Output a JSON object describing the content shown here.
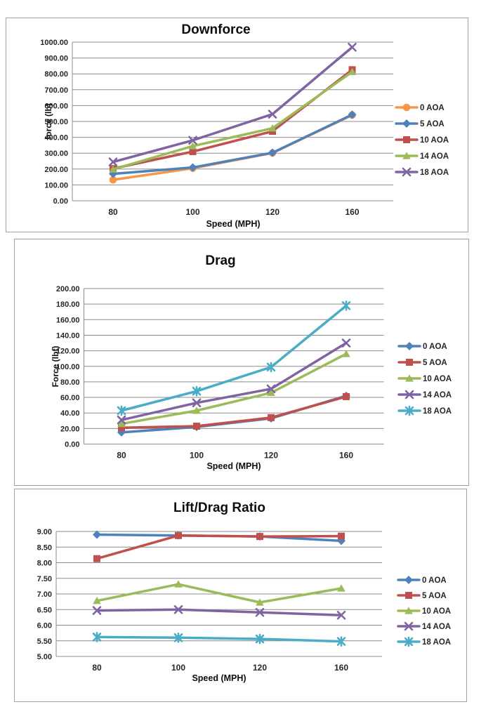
{
  "page": {
    "background": "#ffffff",
    "border_color": "#a3a3a3",
    "grid_color": "#8c8c8c",
    "tick_color": "#262626"
  },
  "chart_data": [
    {
      "type": "line",
      "title": "Downforce",
      "xlabel": "Speed (MPH)",
      "ylabel": "force (lb)",
      "categories": [
        "80",
        "100",
        "120",
        "160"
      ],
      "ylim": [
        0,
        1000
      ],
      "ytick_step": 100,
      "ytick_decimals": 2,
      "grid": true,
      "legend_position": "right",
      "series": [
        {
          "name": "0 AOA",
          "color": "#F79646",
          "marker": "circle",
          "values": [
            132,
            205,
            301,
            540
          ]
        },
        {
          "name": "5 AOA",
          "color": "#4F81BD",
          "marker": "diamond",
          "values": [
            170,
            210,
            303,
            543
          ]
        },
        {
          "name": "10 AOA",
          "color": "#C0504D",
          "marker": "square",
          "values": [
            203,
            310,
            438,
            826
          ]
        },
        {
          "name": "14 AOA",
          "color": "#9BBB59",
          "marker": "triangle",
          "values": [
            198,
            345,
            457,
            813
          ]
        },
        {
          "name": "18 AOA",
          "color": "#8064A2",
          "marker": "x",
          "values": [
            245,
            381,
            546,
            968
          ]
        }
      ]
    },
    {
      "type": "line",
      "title": "Drag",
      "xlabel": "Speed (MPH)",
      "ylabel": "Force (lbf)",
      "categories": [
        "80",
        "100",
        "120",
        "160"
      ],
      "ylim": [
        0,
        200
      ],
      "ytick_step": 20,
      "ytick_decimals": 2,
      "grid": true,
      "legend_position": "right",
      "series": [
        {
          "name": "0 AOA",
          "color": "#4F81BD",
          "marker": "diamond",
          "values": [
            15,
            22,
            33,
            62
          ]
        },
        {
          "name": "5 AOA",
          "color": "#C0504D",
          "marker": "square",
          "values": [
            21,
            23,
            34,
            61
          ]
        },
        {
          "name": "10 AOA",
          "color": "#9BBB59",
          "marker": "triangle",
          "values": [
            26,
            43,
            66,
            116
          ]
        },
        {
          "name": "14 AOA",
          "color": "#8064A2",
          "marker": "x",
          "values": [
            31,
            53,
            71,
            130
          ]
        },
        {
          "name": "18 AOA",
          "color": "#4BACC6",
          "marker": "asterisk",
          "values": [
            43,
            68,
            99,
            178
          ]
        }
      ]
    },
    {
      "type": "line",
      "title": "Lift/Drag Ratio",
      "xlabel": "Speed (MPH)",
      "ylabel": "",
      "categories": [
        "80",
        "100",
        "120",
        "160"
      ],
      "ylim": [
        5,
        9
      ],
      "ytick_step": 0.5,
      "ytick_decimals": 2,
      "grid": true,
      "legend_position": "right",
      "series": [
        {
          "name": "0 AOA",
          "color": "#4F81BD",
          "marker": "diamond",
          "values": [
            8.9,
            8.87,
            8.84,
            8.7
          ]
        },
        {
          "name": "5 AOA",
          "color": "#C0504D",
          "marker": "square",
          "values": [
            8.13,
            8.87,
            8.84,
            8.85
          ]
        },
        {
          "name": "10 AOA",
          "color": "#9BBB59",
          "marker": "triangle",
          "values": [
            6.78,
            7.31,
            6.73,
            7.18
          ]
        },
        {
          "name": "14 AOA",
          "color": "#8064A2",
          "marker": "x",
          "values": [
            6.47,
            6.5,
            6.41,
            6.32
          ]
        },
        {
          "name": "18 AOA",
          "color": "#4BACC6",
          "marker": "asterisk",
          "values": [
            5.62,
            5.6,
            5.56,
            5.48
          ]
        }
      ]
    }
  ]
}
